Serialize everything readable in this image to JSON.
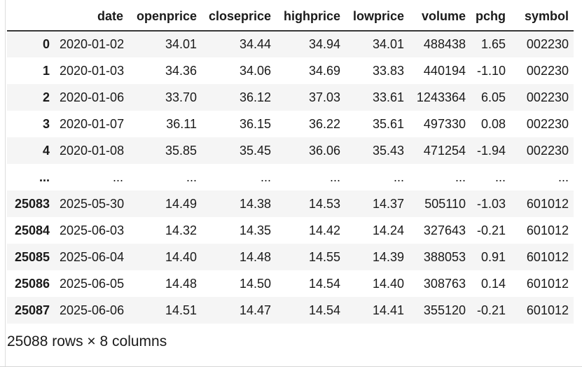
{
  "table": {
    "index_header": "",
    "columns": [
      "date",
      "openprice",
      "closeprice",
      "highprice",
      "lowprice",
      "volume",
      "pchg",
      "symbol"
    ],
    "rows": [
      {
        "index": "0",
        "cells": [
          "2020-01-02",
          "34.01",
          "34.44",
          "34.94",
          "34.01",
          "488438",
          "1.65",
          "002230"
        ]
      },
      {
        "index": "1",
        "cells": [
          "2020-01-03",
          "34.36",
          "34.06",
          "34.69",
          "33.83",
          "440194",
          "-1.10",
          "002230"
        ]
      },
      {
        "index": "2",
        "cells": [
          "2020-01-06",
          "33.70",
          "36.12",
          "37.03",
          "33.61",
          "1243364",
          "6.05",
          "002230"
        ]
      },
      {
        "index": "3",
        "cells": [
          "2020-01-07",
          "36.11",
          "36.15",
          "36.22",
          "35.61",
          "497330",
          "0.08",
          "002230"
        ]
      },
      {
        "index": "4",
        "cells": [
          "2020-01-08",
          "35.85",
          "35.45",
          "36.06",
          "35.43",
          "471254",
          "-1.94",
          "002230"
        ]
      },
      {
        "index": "...",
        "cells": [
          "...",
          "...",
          "...",
          "...",
          "...",
          "...",
          "...",
          "..."
        ]
      },
      {
        "index": "25083",
        "cells": [
          "2025-05-30",
          "14.49",
          "14.38",
          "14.53",
          "14.37",
          "505110",
          "-1.03",
          "601012"
        ]
      },
      {
        "index": "25084",
        "cells": [
          "2025-06-03",
          "14.32",
          "14.35",
          "14.42",
          "14.24",
          "327643",
          "-0.21",
          "601012"
        ]
      },
      {
        "index": "25085",
        "cells": [
          "2025-06-04",
          "14.40",
          "14.48",
          "14.55",
          "14.39",
          "388053",
          "0.91",
          "601012"
        ]
      },
      {
        "index": "25086",
        "cells": [
          "2025-06-05",
          "14.48",
          "14.50",
          "14.54",
          "14.40",
          "308763",
          "0.14",
          "601012"
        ]
      },
      {
        "index": "25087",
        "cells": [
          "2025-06-06",
          "14.51",
          "14.47",
          "14.54",
          "14.41",
          "355120",
          "-0.21",
          "601012"
        ]
      }
    ],
    "footer": "25088 rows × 8 columns"
  },
  "colors": {
    "stripe": "#f5f5f5",
    "header_rule": "#373737",
    "text": "#1a1a1a",
    "frame_line": "#dcdcdc"
  }
}
